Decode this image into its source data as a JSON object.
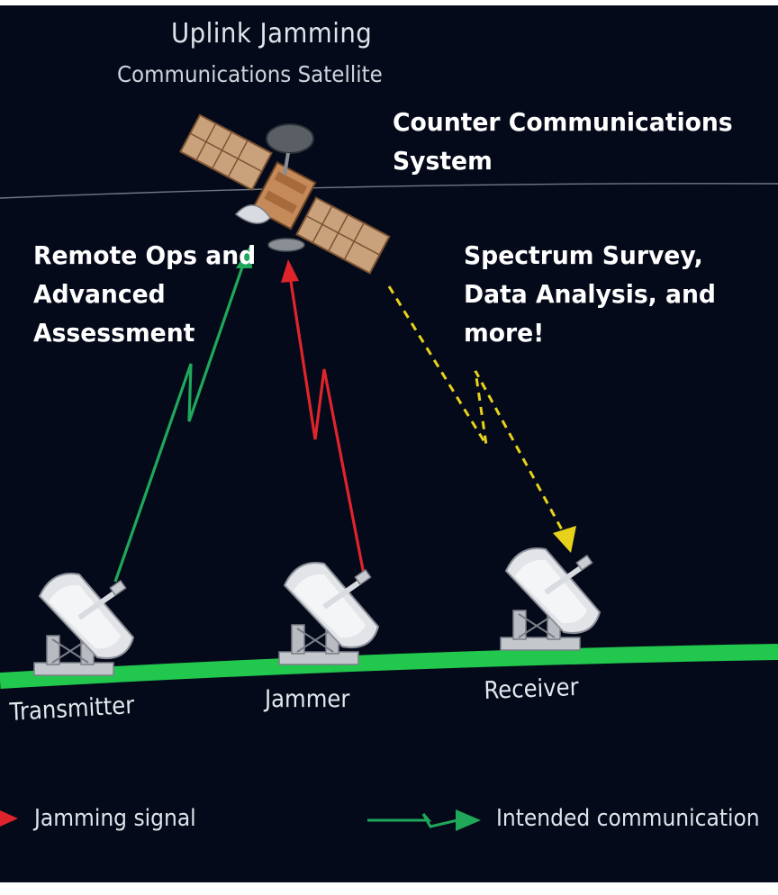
{
  "diagram": {
    "title": "Uplink Jamming",
    "subtitle": "Communications Satellite",
    "overlays": {
      "counter": "Counter Communications System",
      "remote": "Remote Ops and Advanced Assessment",
      "spectrum": "Spectrum Survey, Data Analysis, and more!"
    },
    "stations": {
      "transmitter": "Transmitter",
      "jammer": "Jammer",
      "receiver": "Receiver"
    },
    "legend": {
      "jamming": "Jamming signal",
      "intended": "Intended communication"
    }
  },
  "colors": {
    "background": "#050a1a",
    "intended": "#1fa85a",
    "jamming": "#e0242b",
    "downlink": "#e7d21b",
    "ground": "#22c84d"
  }
}
